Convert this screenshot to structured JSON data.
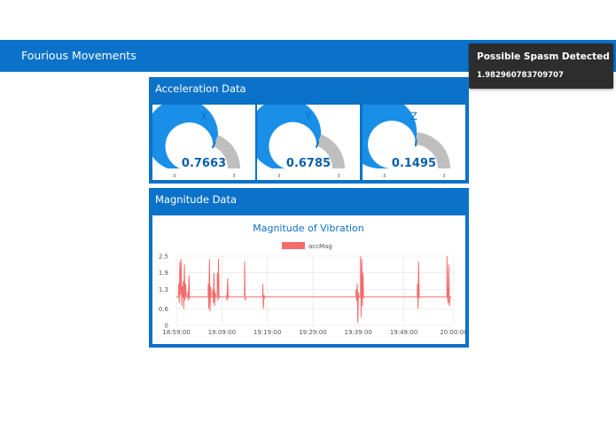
{
  "app": {
    "title": "Fourious Movements"
  },
  "toast": {
    "title": "Possible Spasm Detected",
    "value": "1.982960783709707"
  },
  "acceleration": {
    "title": "Acceleration Data",
    "gauges": [
      {
        "label": "X",
        "value": "0.7663",
        "numeric": 0.7663,
        "min": "-3",
        "max": "3"
      },
      {
        "label": "Y",
        "value": "0.6785",
        "numeric": 0.6785,
        "min": "-3",
        "max": "3"
      },
      {
        "label": "Z",
        "value": "0.1495",
        "numeric": 0.1495,
        "min": "-3",
        "max": "3"
      }
    ],
    "colors": {
      "fill": "#1a8fe8",
      "track": "#bfbfbf",
      "needle": "#0b72c9",
      "value_text": "#0b5fa8"
    }
  },
  "magnitude": {
    "title": "Magnitude Data",
    "chart_data": {
      "type": "line",
      "title": "Magnitude of Vibration",
      "series": [
        {
          "name": "accMag",
          "color": "#f46b6b",
          "baseline": 1.03,
          "spikes": [
            {
              "t": "18:59:30",
              "values": [
                1.5,
                0.8,
                2.3,
                1.1,
                2.4,
                0.7,
                1.4
              ]
            },
            {
              "t": "19:00:30",
              "values": [
                1.6,
                0.6,
                2.2,
                0.9,
                1.5
              ]
            },
            {
              "t": "19:01:30",
              "values": [
                1.2,
                0.9,
                1.8,
                1.0
              ]
            },
            {
              "t": "19:06:00",
              "values": [
                1.5,
                0.6,
                2.4,
                0.5,
                1.4
              ]
            },
            {
              "t": "19:07:00",
              "values": [
                1.3,
                0.8,
                1.9,
                0.7,
                1.2
              ]
            },
            {
              "t": "19:08:00",
              "values": [
                1.9,
                0.9,
                2.4,
                1.0
              ]
            },
            {
              "t": "19:10:00",
              "values": [
                1.1,
                0.9,
                1.7,
                1.0
              ]
            },
            {
              "t": "19:14:00",
              "values": [
                2.3,
                0.9,
                1.0
              ]
            },
            {
              "t": "19:18:00",
              "values": [
                1.5,
                0.6,
                1.1,
                1.0
              ]
            },
            {
              "t": "19:38:30",
              "values": [
                1.3,
                0.9,
                1.5,
                0.1,
                1.2
              ]
            },
            {
              "t": "19:39:30",
              "values": [
                2.5,
                0.3,
                2.4,
                0.7,
                1.9,
                1.0
              ]
            },
            {
              "t": "19:52:00",
              "values": [
                1.5,
                0.6,
                2.3,
                1.0
              ]
            },
            {
              "t": "19:58:30",
              "values": [
                2.5,
                1.0,
                0.8,
                2.2,
                0.7,
                1.0
              ]
            }
          ]
        }
      ],
      "x_ticks": [
        "18:59:00",
        "19:09:00",
        "19:19:00",
        "19:29:00",
        "19:39:00",
        "19:49:00",
        "20:00:00"
      ],
      "y_ticks": [
        "0",
        "0.6",
        "1.3",
        "1.9",
        "2.5"
      ],
      "ylim": [
        0,
        2.5
      ],
      "xlim": [
        "18:59:00",
        "20:00:00"
      ],
      "grid": true,
      "legend": "top-center"
    }
  }
}
